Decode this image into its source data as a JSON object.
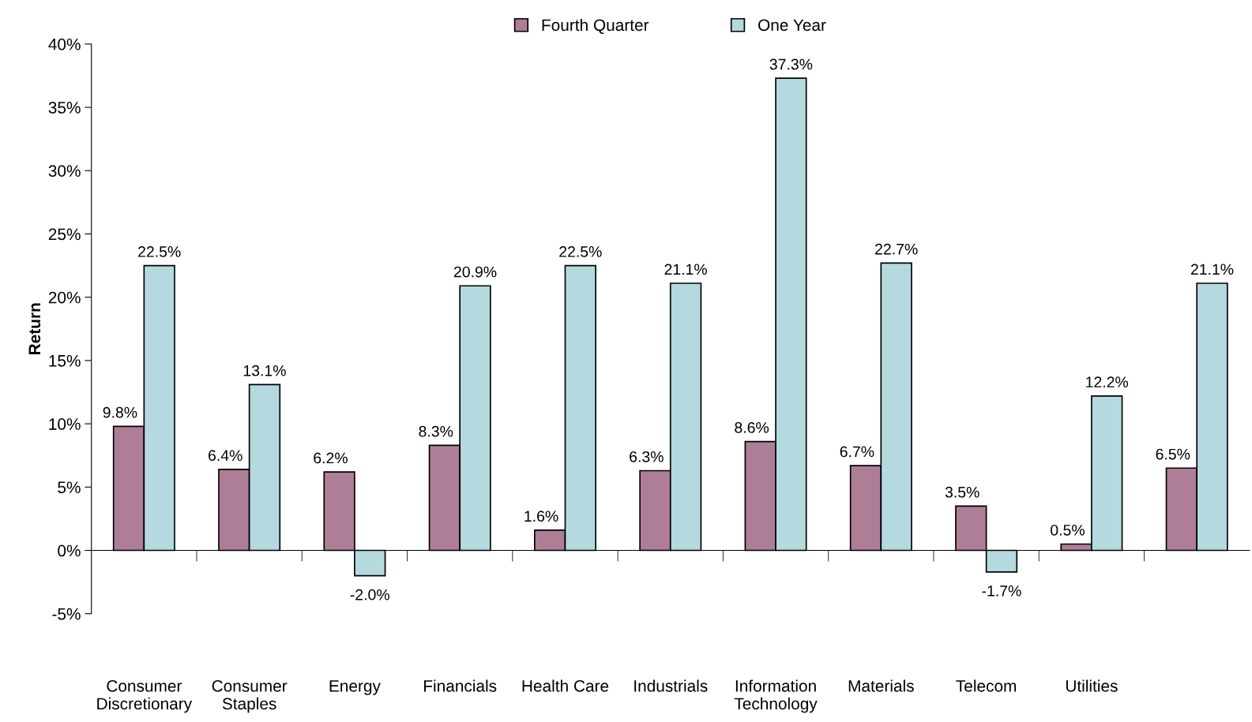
{
  "chart_data": {
    "type": "bar",
    "ylabel": "Return",
    "categories": [
      "Consumer\nDiscretionary",
      "Consumer\nStaples",
      "Energy",
      "Financials",
      "Health Care",
      "Industrials",
      "Information\nTechnology",
      "Materials",
      "Telecom",
      "Utilities",
      null
    ],
    "series": [
      {
        "name": "Fourth Quarter",
        "color": "#ae7e96",
        "values": [
          9.8,
          6.4,
          6.2,
          8.3,
          1.6,
          6.3,
          8.6,
          6.7,
          3.5,
          0.5,
          6.5
        ],
        "value_labels": [
          "9.8%",
          "6.4%",
          "6.2%",
          "8.3%",
          "1.6%",
          "6.3%",
          "8.6%",
          "6.7%",
          "3.5%",
          "0.5%",
          "6.5%"
        ]
      },
      {
        "name": "One Year",
        "color": "#b4d9df",
        "values": [
          22.5,
          13.1,
          -2.0,
          20.9,
          22.5,
          21.1,
          37.3,
          22.7,
          -1.7,
          12.2,
          21.1
        ],
        "value_labels": [
          "22.5%",
          "13.1%",
          "-2.0%",
          "20.9%",
          "22.5%",
          "21.1%",
          "37.3%",
          "22.7%",
          "-1.7%",
          "12.2%",
          "21.1%"
        ]
      }
    ],
    "ylim": [
      -5,
      40
    ],
    "yticks": [
      {
        "value": -5,
        "label": "-5%"
      },
      {
        "value": 0,
        "label": "0%"
      },
      {
        "value": 5,
        "label": "5%"
      },
      {
        "value": 10,
        "label": "10%"
      },
      {
        "value": 15,
        "label": "15%"
      },
      {
        "value": 20,
        "label": "20%"
      },
      {
        "value": 25,
        "label": "25%"
      },
      {
        "value": 30,
        "label": "30%"
      },
      {
        "value": 35,
        "label": "35%"
      },
      {
        "value": 40,
        "label": "40%"
      }
    ],
    "legend": "top"
  }
}
